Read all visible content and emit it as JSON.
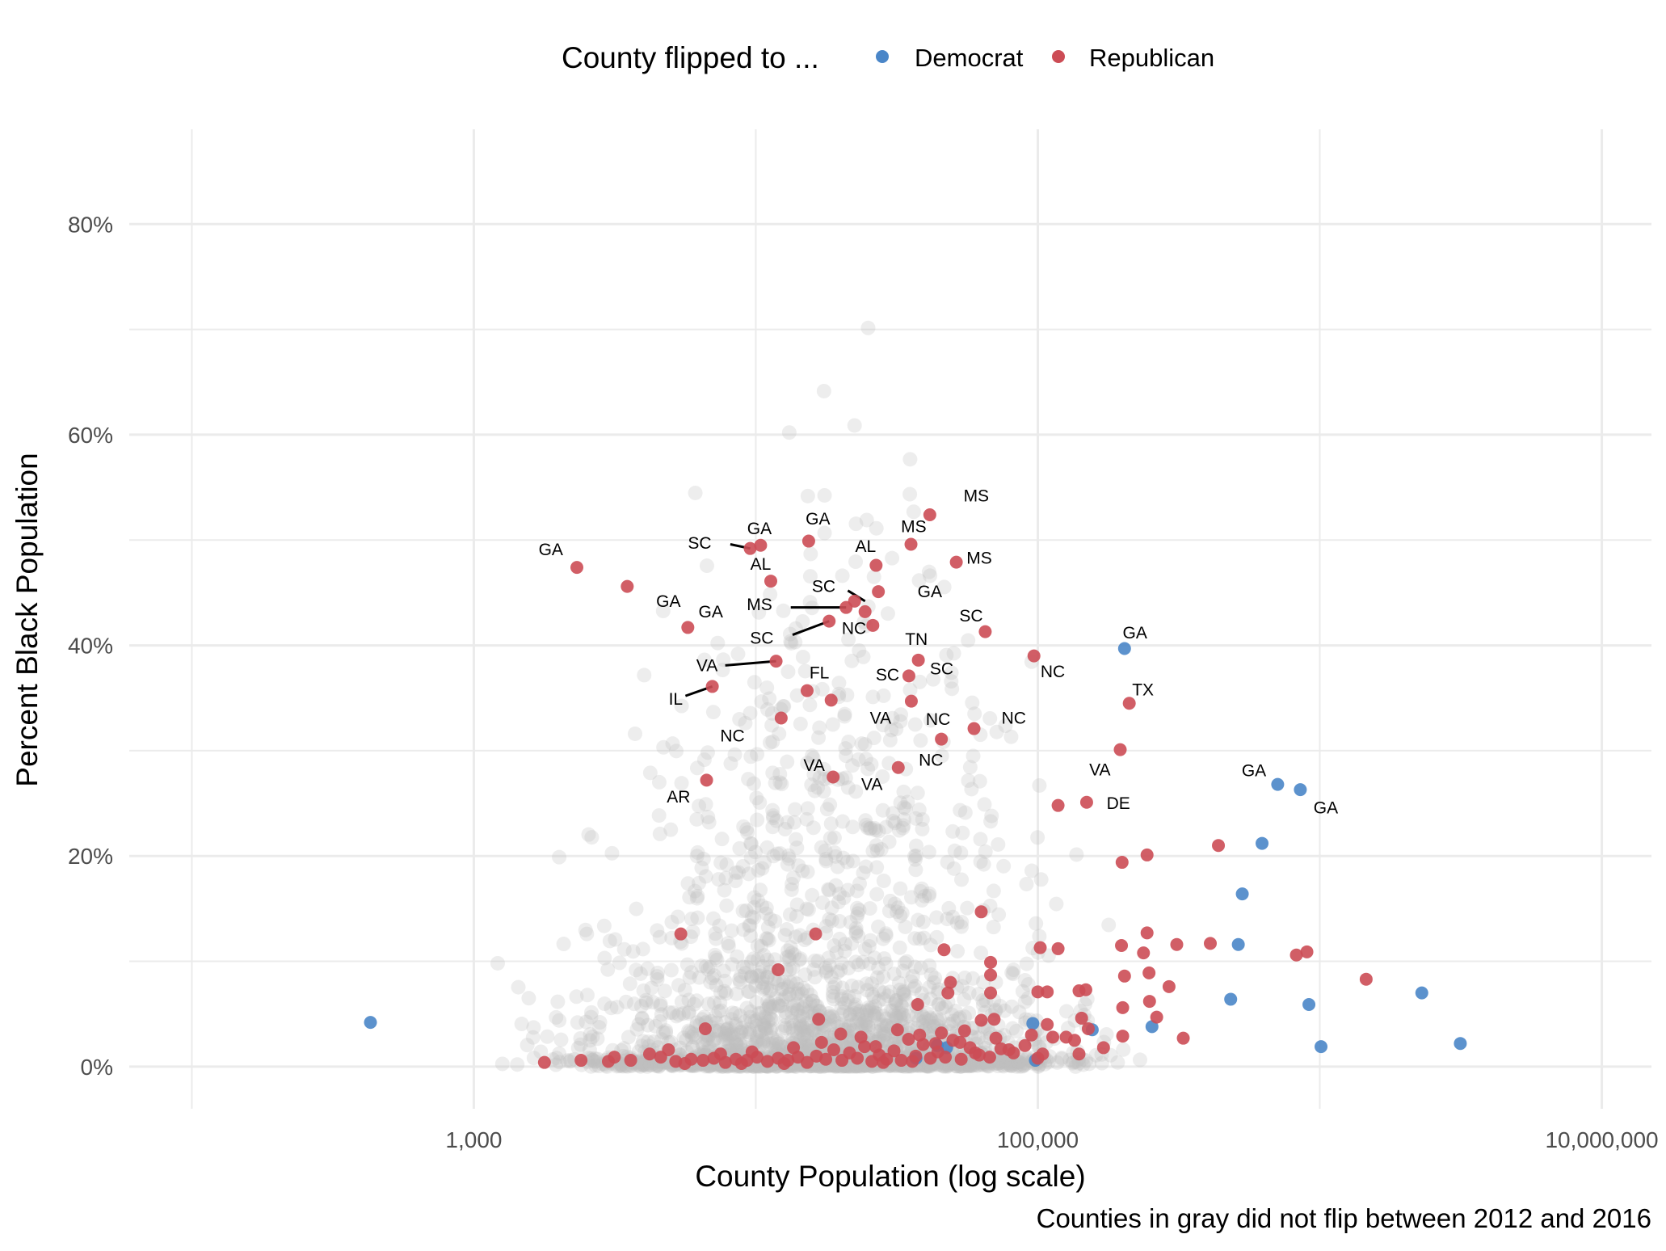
{
  "chart_data": {
    "type": "scatter",
    "title": "",
    "xlabel": "County Population (log scale)",
    "ylabel": "Percent Black Population",
    "caption": "Counties in gray did not flip between 2012 and 2016",
    "x_scale": "log10",
    "xlim": [
      60,
      15000000
    ],
    "ylim": [
      -4,
      89
    ],
    "x_ticks": [
      {
        "value": 1000,
        "label": "1,000"
      },
      {
        "value": 100000,
        "label": "100,000"
      },
      {
        "value": 10000000,
        "label": "10,000,000"
      }
    ],
    "y_ticks": [
      {
        "value": 0,
        "label": "0%"
      },
      {
        "value": 20,
        "label": "20%"
      },
      {
        "value": 40,
        "label": "40%"
      },
      {
        "value": 60,
        "label": "60%"
      },
      {
        "value": 80,
        "label": "80%"
      }
    ],
    "legend": {
      "title": "County flipped to ...",
      "position": "top",
      "entries": [
        {
          "name": "Democrat",
          "color": "#4a86c8"
        },
        {
          "name": "Republican",
          "color": "#cc4c55"
        }
      ]
    },
    "colors": {
      "gray": "#bdbdbd",
      "grid": "#ebebeb"
    },
    "series": [
      {
        "name": "Democrat",
        "color": "#4a86c8",
        "points": [
          {
            "x": 430,
            "y": 4.2
          },
          {
            "x": 203000,
            "y": 39.7
          },
          {
            "x": 709000,
            "y": 26.8
          },
          {
            "x": 853000,
            "y": 26.3
          },
          {
            "x": 624000,
            "y": 21.2
          },
          {
            "x": 531000,
            "y": 16.4
          },
          {
            "x": 514000,
            "y": 11.6
          },
          {
            "x": 483000,
            "y": 6.4
          },
          {
            "x": 915000,
            "y": 5.9
          },
          {
            "x": 2300000,
            "y": 7.0
          },
          {
            "x": 3150000,
            "y": 2.2
          },
          {
            "x": 1010000,
            "y": 1.9
          },
          {
            "x": 96000,
            "y": 4.1
          },
          {
            "x": 156000,
            "y": 3.5
          },
          {
            "x": 254000,
            "y": 3.8
          },
          {
            "x": 37000,
            "y": 0.8
          },
          {
            "x": 44000,
            "y": 2.0
          },
          {
            "x": 47500,
            "y": 1.8
          },
          {
            "x": 98000,
            "y": 0.6
          }
        ]
      },
      {
        "name": "Republican",
        "color": "#cc4c55",
        "points": [
          {
            "x": 2320,
            "y": 47.4
          },
          {
            "x": 3500,
            "y": 45.6
          },
          {
            "x": 9550,
            "y": 49.2
          },
          {
            "x": 10400,
            "y": 49.5
          },
          {
            "x": 15400,
            "y": 49.9
          },
          {
            "x": 11300,
            "y": 46.1
          },
          {
            "x": 26700,
            "y": 47.6
          },
          {
            "x": 35500,
            "y": 49.6
          },
          {
            "x": 41400,
            "y": 52.4
          },
          {
            "x": 51400,
            "y": 47.9
          },
          {
            "x": 22400,
            "y": 44.2
          },
          {
            "x": 20900,
            "y": 43.6
          },
          {
            "x": 24400,
            "y": 43.2
          },
          {
            "x": 27200,
            "y": 45.1
          },
          {
            "x": 5740,
            "y": 41.7
          },
          {
            "x": 18200,
            "y": 42.3
          },
          {
            "x": 26000,
            "y": 41.9
          },
          {
            "x": 11800,
            "y": 38.5
          },
          {
            "x": 7010,
            "y": 36.1
          },
          {
            "x": 65100,
            "y": 41.3
          },
          {
            "x": 96900,
            "y": 39.0
          },
          {
            "x": 37700,
            "y": 38.6
          },
          {
            "x": 34900,
            "y": 37.1
          },
          {
            "x": 15200,
            "y": 35.7
          },
          {
            "x": 18500,
            "y": 34.8
          },
          {
            "x": 35600,
            "y": 34.7
          },
          {
            "x": 12300,
            "y": 33.1
          },
          {
            "x": 59400,
            "y": 32.1
          },
          {
            "x": 45500,
            "y": 31.1
          },
          {
            "x": 211000,
            "y": 34.5
          },
          {
            "x": 196000,
            "y": 30.1
          },
          {
            "x": 32000,
            "y": 28.4
          },
          {
            "x": 18800,
            "y": 27.5
          },
          {
            "x": 6690,
            "y": 27.2
          },
          {
            "x": 118000,
            "y": 24.8
          },
          {
            "x": 149000,
            "y": 25.1
          },
          {
            "x": 5420,
            "y": 12.6
          },
          {
            "x": 12000,
            "y": 9.2
          },
          {
            "x": 16300,
            "y": 12.6
          },
          {
            "x": 437000,
            "y": 21.0
          },
          {
            "x": 244000,
            "y": 20.1
          },
          {
            "x": 199000,
            "y": 19.4
          },
          {
            "x": 63000,
            "y": 14.7
          },
          {
            "x": 46500,
            "y": 11.1
          },
          {
            "x": 102000,
            "y": 11.3
          },
          {
            "x": 118000,
            "y": 11.2
          },
          {
            "x": 198000,
            "y": 11.5
          },
          {
            "x": 244000,
            "y": 12.7
          },
          {
            "x": 237000,
            "y": 10.8
          },
          {
            "x": 311000,
            "y": 11.6
          },
          {
            "x": 409000,
            "y": 11.7
          },
          {
            "x": 826000,
            "y": 10.6
          },
          {
            "x": 900000,
            "y": 10.9
          },
          {
            "x": 1460000,
            "y": 8.3
          },
          {
            "x": 68000,
            "y": 9.9
          },
          {
            "x": 68000,
            "y": 8.7
          },
          {
            "x": 49000,
            "y": 8.0
          },
          {
            "x": 48000,
            "y": 7.0
          },
          {
            "x": 68000,
            "y": 7.0
          },
          {
            "x": 100000,
            "y": 7.1
          },
          {
            "x": 108000,
            "y": 7.1
          },
          {
            "x": 140000,
            "y": 7.2
          },
          {
            "x": 148000,
            "y": 7.3
          },
          {
            "x": 203000,
            "y": 8.6
          },
          {
            "x": 248000,
            "y": 8.9
          },
          {
            "x": 292000,
            "y": 7.6
          },
          {
            "x": 249000,
            "y": 6.2
          },
          {
            "x": 200000,
            "y": 5.6
          },
          {
            "x": 37500,
            "y": 5.9
          },
          {
            "x": 63000,
            "y": 4.4
          },
          {
            "x": 70000,
            "y": 4.5
          },
          {
            "x": 108000,
            "y": 4.0
          },
          {
            "x": 143000,
            "y": 4.6
          },
          {
            "x": 151000,
            "y": 3.6
          },
          {
            "x": 264000,
            "y": 4.7
          },
          {
            "x": 328000,
            "y": 2.7
          },
          {
            "x": 200000,
            "y": 2.9
          },
          {
            "x": 135000,
            "y": 2.5
          },
          {
            "x": 171000,
            "y": 1.8
          },
          {
            "x": 95000,
            "y": 3.0
          },
          {
            "x": 113000,
            "y": 2.8
          },
          {
            "x": 126000,
            "y": 2.8
          },
          {
            "x": 140000,
            "y": 1.2
          },
          {
            "x": 6620,
            "y": 3.6
          },
          {
            "x": 16700,
            "y": 4.5
          },
          {
            "x": 45500,
            "y": 3.2
          },
          {
            "x": 53000,
            "y": 2.3
          },
          {
            "x": 104000,
            "y": 1.2
          },
          {
            "x": 100000,
            "y": 0.8
          },
          {
            "x": 60000,
            "y": 1.3
          },
          {
            "x": 79000,
            "y": 1.6
          },
          {
            "x": 1780,
            "y": 0.4
          },
          {
            "x": 2400,
            "y": 0.6
          },
          {
            "x": 3000,
            "y": 0.5
          },
          {
            "x": 3600,
            "y": 0.6
          },
          {
            "x": 4200,
            "y": 1.2
          },
          {
            "x": 4600,
            "y": 0.9
          },
          {
            "x": 5200,
            "y": 0.5
          },
          {
            "x": 5900,
            "y": 0.7
          },
          {
            "x": 6500,
            "y": 0.6
          },
          {
            "x": 7100,
            "y": 0.8
          },
          {
            "x": 7800,
            "y": 0.4
          },
          {
            "x": 8500,
            "y": 0.7
          },
          {
            "x": 9300,
            "y": 0.6
          },
          {
            "x": 10100,
            "y": 0.9
          },
          {
            "x": 11000,
            "y": 0.5
          },
          {
            "x": 12000,
            "y": 0.8
          },
          {
            "x": 13000,
            "y": 0.6
          },
          {
            "x": 14100,
            "y": 0.9
          },
          {
            "x": 15200,
            "y": 0.4
          },
          {
            "x": 16400,
            "y": 1.0
          },
          {
            "x": 17700,
            "y": 0.7
          },
          {
            "x": 18900,
            "y": 1.6
          },
          {
            "x": 20200,
            "y": 0.6
          },
          {
            "x": 21500,
            "y": 1.3
          },
          {
            "x": 22900,
            "y": 0.8
          },
          {
            "x": 24300,
            "y": 1.9
          },
          {
            "x": 25800,
            "y": 0.5
          },
          {
            "x": 27400,
            "y": 1.1
          },
          {
            "x": 29100,
            "y": 0.7
          },
          {
            "x": 30900,
            "y": 1.5
          },
          {
            "x": 32800,
            "y": 0.6
          },
          {
            "x": 34800,
            "y": 2.6
          },
          {
            "x": 36900,
            "y": 1.0
          },
          {
            "x": 39200,
            "y": 2.1
          },
          {
            "x": 41600,
            "y": 0.8
          },
          {
            "x": 44200,
            "y": 1.4
          },
          {
            "x": 47000,
            "y": 0.9
          },
          {
            "x": 50000,
            "y": 2.5
          },
          {
            "x": 53500,
            "y": 0.7
          },
          {
            "x": 57500,
            "y": 1.8
          },
          {
            "x": 62000,
            "y": 1.1
          },
          {
            "x": 67500,
            "y": 0.9
          },
          {
            "x": 74000,
            "y": 1.7
          },
          {
            "x": 82000,
            "y": 1.3
          },
          {
            "x": 90000,
            "y": 2.0
          },
          {
            "x": 3150,
            "y": 0.9
          },
          {
            "x": 4900,
            "y": 1.6
          },
          {
            "x": 7500,
            "y": 1.2
          },
          {
            "x": 9700,
            "y": 1.4
          },
          {
            "x": 13600,
            "y": 1.8
          },
          {
            "x": 17100,
            "y": 2.3
          },
          {
            "x": 23600,
            "y": 2.8
          },
          {
            "x": 26600,
            "y": 1.9
          },
          {
            "x": 31800,
            "y": 3.5
          },
          {
            "x": 38100,
            "y": 3.0
          },
          {
            "x": 43400,
            "y": 2.2
          },
          {
            "x": 55000,
            "y": 3.4
          },
          {
            "x": 71000,
            "y": 2.7
          },
          {
            "x": 20000,
            "y": 3.1
          },
          {
            "x": 28300,
            "y": 0.4
          },
          {
            "x": 35900,
            "y": 0.5
          },
          {
            "x": 12600,
            "y": 0.3
          },
          {
            "x": 8900,
            "y": 0.3
          },
          {
            "x": 5600,
            "y": 0.3
          }
        ]
      }
    ],
    "labels": [
      {
        "text": "GA",
        "x": 1875,
        "y": 49.1
      },
      {
        "text": "GA",
        "x": 4900,
        "y": 44.2
      },
      {
        "text": "SC",
        "x": 6320,
        "y": 49.7
      },
      {
        "text": "GA",
        "x": 10300,
        "y": 51.1
      },
      {
        "text": "GA",
        "x": 16600,
        "y": 52.0
      },
      {
        "text": "AL",
        "x": 10400,
        "y": 47.7
      },
      {
        "text": "AL",
        "x": 24500,
        "y": 49.4
      },
      {
        "text": "MS",
        "x": 36300,
        "y": 51.3
      },
      {
        "text": "MS",
        "x": 60500,
        "y": 54.2
      },
      {
        "text": "MS",
        "x": 62000,
        "y": 48.3
      },
      {
        "text": "SC",
        "x": 17400,
        "y": 45.6
      },
      {
        "text": "GA",
        "x": 41400,
        "y": 45.1
      },
      {
        "text": "MS",
        "x": 10300,
        "y": 43.9
      },
      {
        "text": "GA",
        "x": 6920,
        "y": 43.2
      },
      {
        "text": "NC",
        "x": 22300,
        "y": 41.6
      },
      {
        "text": "SC",
        "x": 10500,
        "y": 40.7
      },
      {
        "text": "SC",
        "x": 58000,
        "y": 42.8
      },
      {
        "text": "TN",
        "x": 37100,
        "y": 40.6
      },
      {
        "text": "VA",
        "x": 6710,
        "y": 38.1
      },
      {
        "text": "FL",
        "x": 16800,
        "y": 37.4
      },
      {
        "text": "SC",
        "x": 29300,
        "y": 37.2
      },
      {
        "text": "SC",
        "x": 45600,
        "y": 37.8
      },
      {
        "text": "NC",
        "x": 113000,
        "y": 37.5
      },
      {
        "text": "GA",
        "x": 221000,
        "y": 41.2
      },
      {
        "text": "IL",
        "x": 5200,
        "y": 34.9
      },
      {
        "text": "TX",
        "x": 236000,
        "y": 35.8
      },
      {
        "text": "NC",
        "x": 8260,
        "y": 31.4
      },
      {
        "text": "VA",
        "x": 27700,
        "y": 33.1
      },
      {
        "text": "NC",
        "x": 44300,
        "y": 33.0
      },
      {
        "text": "NC",
        "x": 82200,
        "y": 33.1
      },
      {
        "text": "NC",
        "x": 41800,
        "y": 29.1
      },
      {
        "text": "VA",
        "x": 16100,
        "y": 28.6
      },
      {
        "text": "VA",
        "x": 25800,
        "y": 26.8
      },
      {
        "text": "VA",
        "x": 166000,
        "y": 28.2
      },
      {
        "text": "AR",
        "x": 5320,
        "y": 25.6
      },
      {
        "text": "DE",
        "x": 193000,
        "y": 25.0
      },
      {
        "text": "GA",
        "x": 584000,
        "y": 28.1
      },
      {
        "text": "GA",
        "x": 1050000,
        "y": 24.6
      }
    ],
    "leaders": [
      {
        "from": [
          8120,
          49.6
        ],
        "to": [
          9550,
          49.2
        ]
      },
      {
        "from": [
          21200,
          45.2
        ],
        "to": [
          24400,
          44.2
        ]
      },
      {
        "from": [
          13300,
          43.6
        ],
        "to": [
          20900,
          43.6
        ]
      },
      {
        "from": [
          13500,
          41.0
        ],
        "to": [
          18200,
          42.3
        ]
      },
      {
        "from": [
          7790,
          38.1
        ],
        "to": [
          11800,
          38.5
        ]
      },
      {
        "from": [
          5630,
          35.2
        ],
        "to": [
          7010,
          36.1
        ]
      }
    ]
  }
}
